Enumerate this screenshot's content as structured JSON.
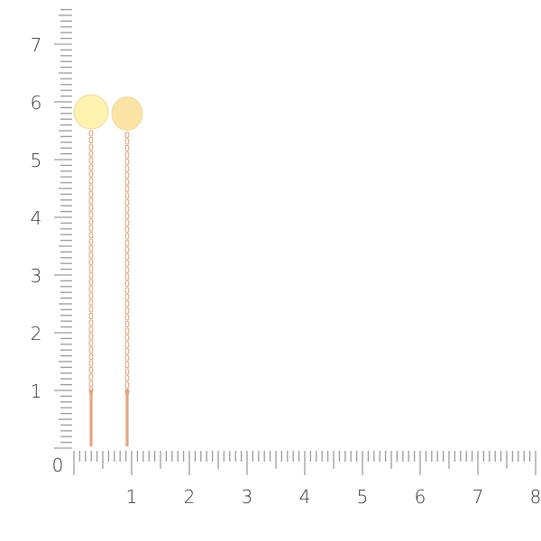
{
  "ruler": {
    "vertical_labels": [
      "0",
      "1",
      "2",
      "3",
      "4",
      "5",
      "6",
      "7"
    ],
    "horizontal_labels": [
      "1",
      "2",
      "3",
      "4",
      "5",
      "6",
      "7",
      "8"
    ],
    "tick_color": "#9a9a9a",
    "label_color": "#333333"
  },
  "product": {
    "type": "threader earrings with round disc",
    "metal_color": "#e6a57e",
    "disc_color": "#fdf2b0"
  }
}
